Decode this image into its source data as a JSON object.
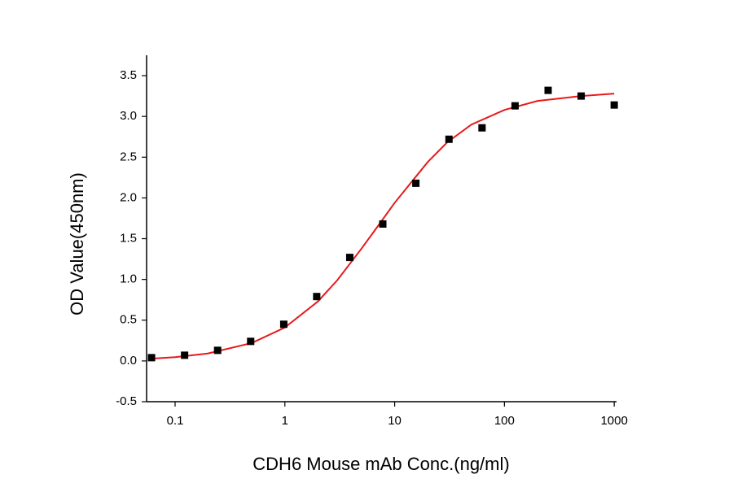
{
  "chart_data": {
    "type": "scatter",
    "x_label": "CDH6 Mouse mAb Conc.(ng/ml)",
    "y_label": "OD Value(450nm)",
    "x_scale": "log",
    "xlim": [
      0.055,
      1050
    ],
    "xticks": [
      0.1,
      1,
      10,
      100,
      1000
    ],
    "ylim": [
      -0.5,
      3.75
    ],
    "yticks": [
      -0.5,
      {
        "value": 0,
        "label": "0.0"
      },
      0.5,
      {
        "value": 1,
        "label": "1.0"
      },
      1.5,
      {
        "value": 2,
        "label": "2.0"
      },
      2.5,
      {
        "value": 3,
        "label": "3.0"
      },
      3.5
    ],
    "points": {
      "color": "#000000",
      "x": [
        0.061,
        0.122,
        0.244,
        0.488,
        0.977,
        1.95,
        3.9,
        7.8,
        15.6,
        31.25,
        62.5,
        125,
        250,
        500,
        1000
      ],
      "values": [
        0.04,
        0.07,
        0.13,
        0.24,
        0.45,
        0.79,
        1.27,
        1.68,
        2.18,
        2.72,
        2.86,
        3.13,
        3.32,
        3.25,
        3.14
      ]
    },
    "fit": {
      "color": "#e8191b",
      "x": [
        0.06,
        0.1,
        0.2,
        0.5,
        1,
        2,
        3,
        5,
        7,
        10,
        20,
        30,
        50,
        100,
        200,
        500,
        1000
      ],
      "values": [
        0.028,
        0.046,
        0.092,
        0.22,
        0.41,
        0.73,
        0.99,
        1.38,
        1.65,
        1.94,
        2.44,
        2.68,
        2.9,
        3.08,
        3.19,
        3.25,
        3.28
      ]
    }
  }
}
